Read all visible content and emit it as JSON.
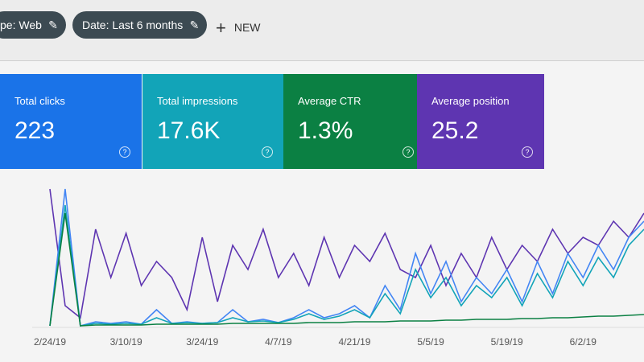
{
  "filters": {
    "chip_1": "pe: Web",
    "chip_2": "Date: Last 6 months",
    "new_button": "NEW"
  },
  "metrics": [
    {
      "label": "Total clicks",
      "value": "223",
      "color": "#1a73e8"
    },
    {
      "label": "Total impressions",
      "value": "17.6K",
      "color": "#12a4b8"
    },
    {
      "label": "Average CTR",
      "value": "1.3%",
      "color": "#0b8043"
    },
    {
      "label": "Average position",
      "value": "25.2",
      "color": "#5e35b1"
    }
  ],
  "chart_data": {
    "type": "line",
    "categories": [
      "2/24/19",
      null,
      null,
      null,
      null,
      "3/10/19",
      null,
      null,
      null,
      null,
      "3/24/19",
      null,
      null,
      null,
      null,
      "4/7/19",
      null,
      null,
      null,
      null,
      "4/21/19",
      null,
      null,
      null,
      null,
      "5/5/19",
      null,
      null,
      null,
      null,
      "5/19/19",
      null,
      null,
      null,
      null,
      "6/2/19",
      null,
      null,
      null,
      null
    ],
    "series": [
      {
        "color": "#5e35b1",
        "values": [
          170,
          25,
          10,
          120,
          60,
          115,
          50,
          80,
          60,
          20,
          110,
          30,
          100,
          70,
          120,
          60,
          90,
          50,
          110,
          60,
          100,
          80,
          115,
          70,
          60,
          100,
          50,
          90,
          60,
          110,
          70,
          100,
          80,
          120,
          90,
          110,
          100,
          130,
          110,
          140
        ]
      },
      {
        "color": "#4285f4",
        "values": [
          0,
          170,
          0,
          5,
          3,
          5,
          2,
          20,
          3,
          5,
          3,
          4,
          20,
          5,
          8,
          4,
          10,
          20,
          10,
          15,
          25,
          10,
          50,
          20,
          90,
          40,
          80,
          30,
          60,
          40,
          70,
          30,
          80,
          40,
          90,
          60,
          100,
          70,
          110,
          130
        ]
      },
      {
        "color": "#12a4b8",
        "values": [
          0,
          150,
          0,
          3,
          2,
          3,
          2,
          10,
          3,
          4,
          3,
          4,
          10,
          5,
          6,
          4,
          8,
          15,
          8,
          12,
          20,
          10,
          40,
          15,
          70,
          35,
          60,
          25,
          50,
          35,
          60,
          25,
          65,
          35,
          80,
          50,
          85,
          60,
          100,
          120
        ]
      },
      {
        "color": "#0b8043",
        "values": [
          0,
          140,
          0,
          1,
          1,
          1,
          1,
          2,
          2,
          2,
          2,
          2,
          3,
          3,
          3,
          3,
          3,
          4,
          4,
          4,
          5,
          5,
          5,
          6,
          6,
          6,
          7,
          7,
          8,
          8,
          8,
          9,
          9,
          10,
          10,
          11,
          12,
          12,
          13,
          14
        ]
      }
    ]
  }
}
